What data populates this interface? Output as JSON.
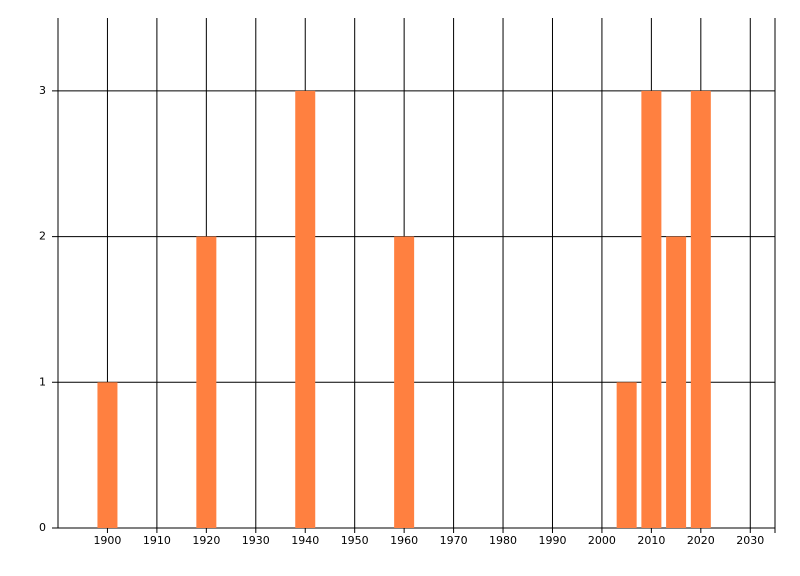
{
  "chart_data": {
    "type": "bar",
    "x": [
      1900,
      1920,
      1940,
      1960,
      2005,
      2010,
      2015,
      2020
    ],
    "values": [
      1,
      2,
      3,
      2,
      1,
      3,
      2,
      3
    ],
    "color": "#ff8040",
    "xlim": [
      1890,
      2035
    ],
    "xticks": [
      1900,
      1910,
      1920,
      1930,
      1940,
      1950,
      1960,
      1970,
      1980,
      1990,
      2000,
      2010,
      2020,
      2030
    ],
    "ylim": [
      0,
      3.5
    ],
    "yticks": [
      0,
      1,
      2,
      3
    ],
    "grid": true
  }
}
